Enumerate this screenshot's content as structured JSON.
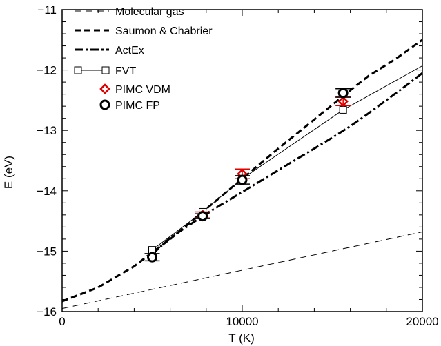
{
  "chart_data": {
    "type": "line",
    "title": "",
    "xlabel": "T (K)",
    "ylabel": "E (eV)",
    "xlim": [
      0,
      20000
    ],
    "ylim": [
      -16,
      -11
    ],
    "x_ticks": [
      0,
      10000,
      20000
    ],
    "x_tick_labels": [
      "0",
      "10000",
      "20000"
    ],
    "y_ticks": [
      -16,
      -15,
      -14,
      -13,
      -12,
      -11
    ],
    "y_tick_labels": [
      "−16",
      "−15",
      "−14",
      "−13",
      "−12",
      "−11"
    ],
    "grid": false,
    "legend_position": "top-left",
    "series": [
      {
        "name": "Molecular gas",
        "style": "thin-dashed",
        "color": "#000000",
        "x": [
          0,
          20000
        ],
        "y": [
          -15.95,
          -14.68
        ]
      },
      {
        "name": "Saumon & Chabrier",
        "style": "thick-dashed",
        "color": "#000000",
        "x": [
          0,
          2000,
          4000,
          5000,
          6000,
          8000,
          10000,
          12000,
          14000,
          15600,
          17000,
          18500,
          20000
        ],
        "y": [
          -15.83,
          -15.6,
          -15.25,
          -15.02,
          -14.8,
          -14.3,
          -13.8,
          -13.3,
          -12.82,
          -12.43,
          -12.1,
          -11.82,
          -11.5
        ]
      },
      {
        "name": "ActEx",
        "style": "thick-dash-dot",
        "color": "#000000",
        "x": [
          5000,
          6000,
          7000,
          8000,
          9000,
          10000,
          11000,
          12000,
          13000,
          14000,
          15000,
          16000,
          17000,
          18000,
          19000,
          20000
        ],
        "y": [
          -15.05,
          -14.78,
          -14.58,
          -14.38,
          -14.2,
          -14.02,
          -13.84,
          -13.66,
          -13.48,
          -13.3,
          -13.12,
          -12.93,
          -12.72,
          -12.5,
          -12.28,
          -12.05
        ]
      },
      {
        "name": "FVT",
        "style": "thin-solid-square-markers",
        "color": "#000000",
        "x": [
          5000,
          7800,
          10000,
          15600,
          20000
        ],
        "y": [
          -14.98,
          -14.35,
          -13.8,
          -12.66,
          -11.93
        ],
        "markers_at": [
          0,
          1,
          2,
          3
        ]
      },
      {
        "name": "PIMC VDM",
        "style": "diamond-markers-with-errorbars",
        "color": "#dd0000",
        "x": [
          7800,
          10000,
          15600
        ],
        "y": [
          -14.4,
          -13.72,
          -12.52
        ],
        "err": [
          0.05,
          0.08,
          0.07
        ]
      },
      {
        "name": "PIMC FP",
        "style": "circle-markers-with-errorbars",
        "color": "#000000",
        "x": [
          5000,
          7800,
          10000,
          15600
        ],
        "y": [
          -15.1,
          -14.42,
          -13.82,
          -12.38
        ],
        "err": [
          0.06,
          0.04,
          0.07,
          0.07
        ]
      }
    ]
  }
}
